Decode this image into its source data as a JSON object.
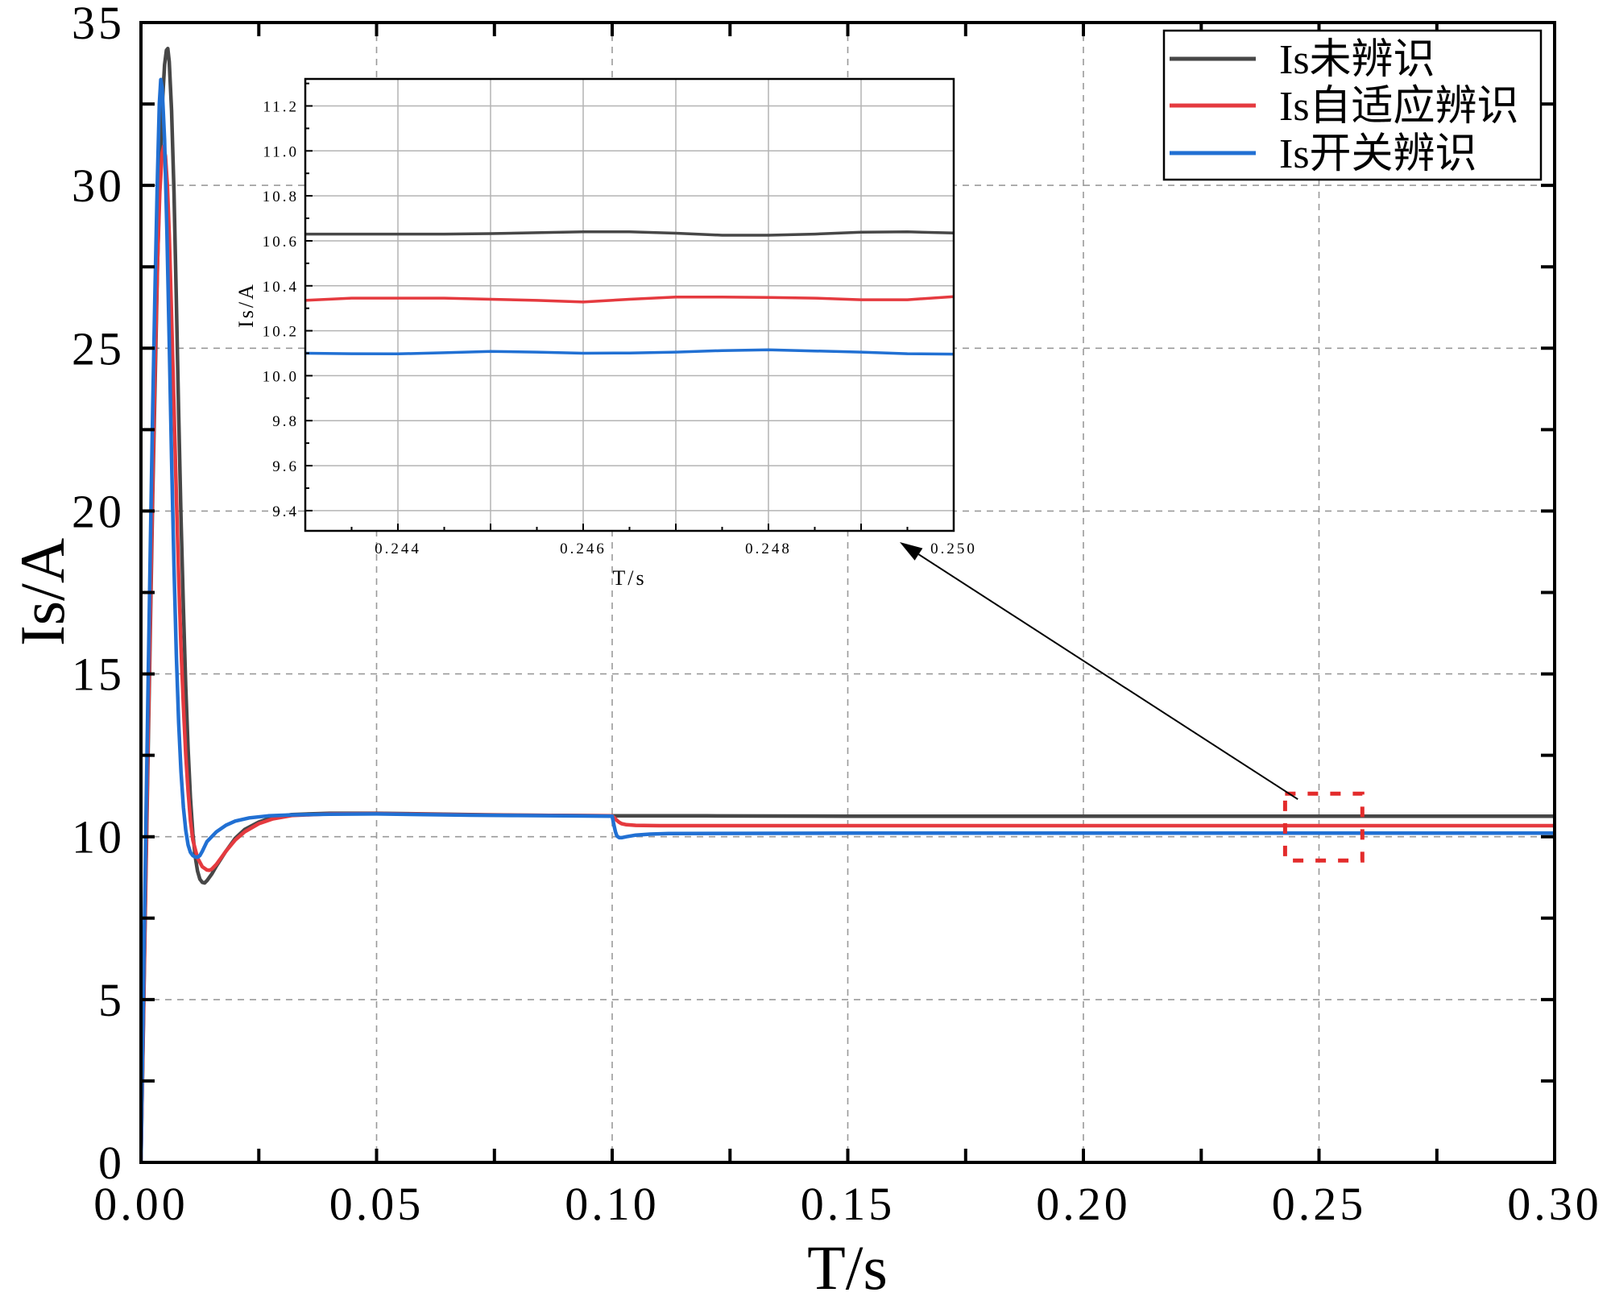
{
  "chart_data": [
    {
      "type": "line",
      "xlabel": "T/s",
      "ylabel": "Is/A",
      "xlim": [
        0,
        0.3
      ],
      "ylim": [
        0,
        35
      ],
      "xticks": [
        0,
        0.05,
        0.1,
        0.15,
        0.2,
        0.25,
        0.3
      ],
      "xtick_labels": [
        "0.00",
        "0.05",
        "0.10",
        "0.15",
        "0.20",
        "0.25",
        "0.30"
      ],
      "yticks": [
        0,
        5,
        10,
        15,
        20,
        25,
        30,
        35
      ],
      "ytick_labels": [
        "0",
        "5",
        "10",
        "15",
        "20",
        "25",
        "30",
        "35"
      ],
      "grid": true,
      "legend": "top-right",
      "series": [
        {
          "name": "Is未辨识",
          "color": "#474747",
          "points": [
            [
              0,
              0
            ],
            [
              0.0005,
              4
            ],
            [
              0.001,
              8.5
            ],
            [
              0.0015,
              12.5
            ],
            [
              0.002,
              16.5
            ],
            [
              0.0025,
              20.5
            ],
            [
              0.003,
              24
            ],
            [
              0.0035,
              27.5
            ],
            [
              0.004,
              30.3
            ],
            [
              0.0045,
              32.4
            ],
            [
              0.005,
              33.7
            ],
            [
              0.0054,
              34.15
            ],
            [
              0.0057,
              34.2
            ],
            [
              0.006,
              33.8
            ],
            [
              0.0065,
              32.3
            ],
            [
              0.007,
              29.8
            ],
            [
              0.0075,
              26.5
            ],
            [
              0.008,
              23
            ],
            [
              0.0085,
              19.8
            ],
            [
              0.009,
              17
            ],
            [
              0.0095,
              14.6
            ],
            [
              0.01,
              12.7
            ],
            [
              0.0105,
              11.2
            ],
            [
              0.011,
              10.1
            ],
            [
              0.0115,
              9.4
            ],
            [
              0.012,
              8.95
            ],
            [
              0.0125,
              8.7
            ],
            [
              0.013,
              8.6
            ],
            [
              0.0135,
              8.58
            ],
            [
              0.014,
              8.65
            ],
            [
              0.015,
              8.85
            ],
            [
              0.016,
              9.1
            ],
            [
              0.018,
              9.55
            ],
            [
              0.02,
              9.95
            ],
            [
              0.022,
              10.22
            ],
            [
              0.025,
              10.45
            ],
            [
              0.028,
              10.6
            ],
            [
              0.032,
              10.68
            ],
            [
              0.04,
              10.72
            ],
            [
              0.05,
              10.72
            ],
            [
              0.06,
              10.7
            ],
            [
              0.07,
              10.68
            ],
            [
              0.08,
              10.66
            ],
            [
              0.09,
              10.65
            ],
            [
              0.1,
              10.64
            ],
            [
              0.12,
              10.64
            ],
            [
              0.15,
              10.63
            ],
            [
              0.2,
              10.63
            ],
            [
              0.25,
              10.63
            ],
            [
              0.3,
              10.63
            ]
          ]
        },
        {
          "name": "Is自适应辨识",
          "color": "#e53a3f",
          "points": [
            [
              0,
              0
            ],
            [
              0.0005,
              4.2
            ],
            [
              0.001,
              8.8
            ],
            [
              0.0015,
              13
            ],
            [
              0.002,
              17
            ],
            [
              0.0025,
              21
            ],
            [
              0.003,
              24.6
            ],
            [
              0.0035,
              27.6
            ],
            [
              0.004,
              29.8
            ],
            [
              0.0045,
              31
            ],
            [
              0.0048,
              31.2
            ],
            [
              0.0052,
              30.9
            ],
            [
              0.0056,
              30
            ],
            [
              0.006,
              28.5
            ],
            [
              0.0065,
              26
            ],
            [
              0.007,
              23.2
            ],
            [
              0.0075,
              20.5
            ],
            [
              0.008,
              18
            ],
            [
              0.0085,
              15.8
            ],
            [
              0.009,
              14
            ],
            [
              0.0095,
              12.5
            ],
            [
              0.01,
              11.4
            ],
            [
              0.0105,
              10.5
            ],
            [
              0.011,
              9.9
            ],
            [
              0.012,
              9.35
            ],
            [
              0.013,
              9.08
            ],
            [
              0.014,
              8.98
            ],
            [
              0.0145,
              8.97
            ],
            [
              0.015,
              9.0
            ],
            [
              0.016,
              9.15
            ],
            [
              0.018,
              9.55
            ],
            [
              0.02,
              9.9
            ],
            [
              0.022,
              10.15
            ],
            [
              0.025,
              10.4
            ],
            [
              0.028,
              10.55
            ],
            [
              0.032,
              10.65
            ],
            [
              0.04,
              10.7
            ],
            [
              0.05,
              10.71
            ],
            [
              0.06,
              10.69
            ],
            [
              0.07,
              10.67
            ],
            [
              0.08,
              10.66
            ],
            [
              0.09,
              10.65
            ],
            [
              0.1,
              10.64
            ],
            [
              0.1005,
              10.58
            ],
            [
              0.101,
              10.5
            ],
            [
              0.1015,
              10.44
            ],
            [
              0.102,
              10.4
            ],
            [
              0.103,
              10.37
            ],
            [
              0.105,
              10.35
            ],
            [
              0.11,
              10.34
            ],
            [
              0.15,
              10.34
            ],
            [
              0.2,
              10.34
            ],
            [
              0.25,
              10.34
            ],
            [
              0.3,
              10.34
            ]
          ]
        },
        {
          "name": "Is开关辨识",
          "color": "#2170d3",
          "points": [
            [
              0,
              0
            ],
            [
              0.0005,
              5
            ],
            [
              0.001,
              10
            ],
            [
              0.0015,
              14.6
            ],
            [
              0.002,
              19
            ],
            [
              0.0025,
              23.2
            ],
            [
              0.003,
              27
            ],
            [
              0.0035,
              30.3
            ],
            [
              0.0039,
              32.5
            ],
            [
              0.0042,
              33.25
            ],
            [
              0.0045,
              33
            ],
            [
              0.005,
              31.4
            ],
            [
              0.0055,
              28.6
            ],
            [
              0.006,
              25.2
            ],
            [
              0.0065,
              21.6
            ],
            [
              0.007,
              18.3
            ],
            [
              0.0075,
              15.6
            ],
            [
              0.008,
              13.5
            ],
            [
              0.0085,
              12
            ],
            [
              0.009,
              10.9
            ],
            [
              0.0095,
              10.2
            ],
            [
              0.01,
              9.75
            ],
            [
              0.0105,
              9.52
            ],
            [
              0.011,
              9.42
            ],
            [
              0.0115,
              9.38
            ],
            [
              0.012,
              9.37
            ],
            [
              0.0125,
              9.42
            ],
            [
              0.013,
              9.55
            ],
            [
              0.014,
              9.85
            ],
            [
              0.016,
              10.15
            ],
            [
              0.018,
              10.35
            ],
            [
              0.02,
              10.48
            ],
            [
              0.023,
              10.58
            ],
            [
              0.027,
              10.64
            ],
            [
              0.032,
              10.67
            ],
            [
              0.04,
              10.69
            ],
            [
              0.05,
              10.7
            ],
            [
              0.06,
              10.68
            ],
            [
              0.07,
              10.66
            ],
            [
              0.08,
              10.65
            ],
            [
              0.09,
              10.64
            ],
            [
              0.1,
              10.63
            ],
            [
              0.1003,
              10.4
            ],
            [
              0.1007,
              10.15
            ],
            [
              0.101,
              10.02
            ],
            [
              0.1015,
              9.97
            ],
            [
              0.102,
              9.97
            ],
            [
              0.103,
              10.0
            ],
            [
              0.105,
              10.05
            ],
            [
              0.108,
              10.08
            ],
            [
              0.112,
              10.1
            ],
            [
              0.15,
              10.11
            ],
            [
              0.2,
              10.11
            ],
            [
              0.25,
              10.11
            ],
            [
              0.3,
              10.11
            ]
          ]
        }
      ]
    },
    {
      "type": "line",
      "xlabel": "T/s",
      "ylabel": "Is/A",
      "xlim": [
        0.243,
        0.25
      ],
      "ylim": [
        9.31,
        11.32
      ],
      "xticks": [
        0.244,
        0.246,
        0.248,
        0.25
      ],
      "xtick_labels": [
        "0.244",
        "0.246",
        "0.248",
        "0.250"
      ],
      "yticks": [
        9.4,
        9.6,
        9.8,
        10.0,
        10.2,
        10.4,
        10.6,
        10.8,
        11.0,
        11.2
      ],
      "ytick_labels": [
        "9.4",
        "9.6",
        "9.8",
        "10.0",
        "10.2",
        "10.4",
        "10.6",
        "10.8",
        "11.0",
        "11.2"
      ],
      "grid": true,
      "series": [
        {
          "color": "#474747",
          "points": [
            [
              0.243,
              10.63
            ],
            [
              0.2435,
              10.63
            ],
            [
              0.244,
              10.63
            ],
            [
              0.2445,
              10.63
            ],
            [
              0.245,
              10.632
            ],
            [
              0.2455,
              10.636
            ],
            [
              0.246,
              10.64
            ],
            [
              0.2465,
              10.64
            ],
            [
              0.247,
              10.634
            ],
            [
              0.2475,
              10.625
            ],
            [
              0.248,
              10.625
            ],
            [
              0.2485,
              10.63
            ],
            [
              0.249,
              10.638
            ],
            [
              0.2495,
              10.64
            ],
            [
              0.25,
              10.635
            ]
          ]
        },
        {
          "color": "#e53a3f",
          "points": [
            [
              0.243,
              10.335
            ],
            [
              0.2435,
              10.345
            ],
            [
              0.244,
              10.345
            ],
            [
              0.2445,
              10.345
            ],
            [
              0.245,
              10.34
            ],
            [
              0.2455,
              10.335
            ],
            [
              0.246,
              10.328
            ],
            [
              0.2465,
              10.34
            ],
            [
              0.247,
              10.35
            ],
            [
              0.2475,
              10.35
            ],
            [
              0.248,
              10.348
            ],
            [
              0.2485,
              10.345
            ],
            [
              0.249,
              10.338
            ],
            [
              0.2495,
              10.338
            ],
            [
              0.25,
              10.352
            ]
          ]
        },
        {
          "color": "#2170d3",
          "points": [
            [
              0.243,
              10.1
            ],
            [
              0.2435,
              10.098
            ],
            [
              0.244,
              10.097
            ],
            [
              0.2445,
              10.102
            ],
            [
              0.245,
              10.108
            ],
            [
              0.2455,
              10.105
            ],
            [
              0.246,
              10.1
            ],
            [
              0.2465,
              10.101
            ],
            [
              0.247,
              10.105
            ],
            [
              0.2475,
              10.112
            ],
            [
              0.248,
              10.115
            ],
            [
              0.2485,
              10.11
            ],
            [
              0.249,
              10.105
            ],
            [
              0.2495,
              10.098
            ],
            [
              0.25,
              10.096
            ]
          ]
        }
      ]
    }
  ]
}
